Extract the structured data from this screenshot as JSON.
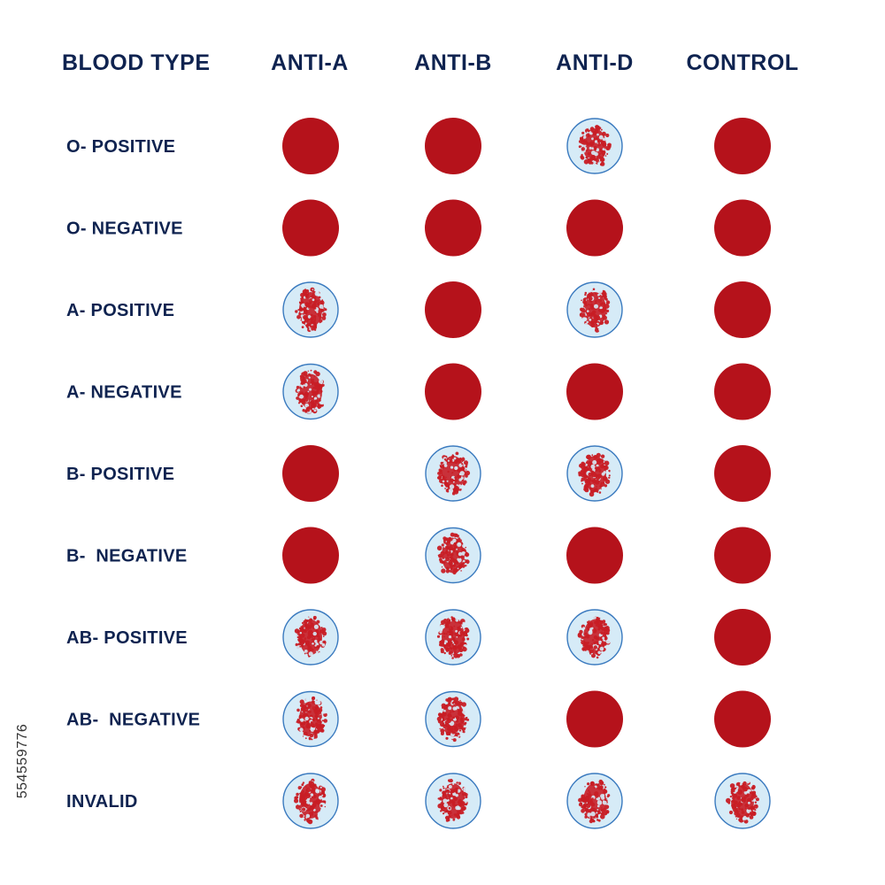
{
  "colors": {
    "heading": "#0f2350",
    "blood_red": "#b5121b",
    "agglutination_red": "#c81d25",
    "well_fill": "#d6ebf7",
    "well_stroke": "#3a7abf"
  },
  "headers": [
    "BLOOD TYPE",
    "ANTI-A",
    "ANTI-B",
    "ANTI-D",
    "CONTROL"
  ],
  "rows": [
    {
      "label": "O- POSITIVE",
      "results": [
        "solid",
        "solid",
        "clumped",
        "solid"
      ]
    },
    {
      "label": "O- NEGATIVE",
      "results": [
        "solid",
        "solid",
        "solid",
        "solid"
      ]
    },
    {
      "label": "A- POSITIVE",
      "results": [
        "clumped",
        "solid",
        "clumped",
        "solid"
      ]
    },
    {
      "label": "A- NEGATIVE",
      "results": [
        "clumped",
        "solid",
        "solid",
        "solid"
      ]
    },
    {
      "label": "B- POSITIVE",
      "results": [
        "solid",
        "clumped",
        "clumped",
        "solid"
      ]
    },
    {
      "label": "B-  NEGATIVE",
      "results": [
        "solid",
        "clumped",
        "solid",
        "solid"
      ]
    },
    {
      "label": "AB- POSITIVE",
      "results": [
        "clumped",
        "clumped",
        "clumped",
        "solid"
      ]
    },
    {
      "label": "AB-  NEGATIVE",
      "results": [
        "clumped",
        "clumped",
        "solid",
        "solid"
      ]
    },
    {
      "label": "INVALID",
      "results": [
        "clumped",
        "clumped",
        "clumped",
        "clumped"
      ]
    }
  ],
  "side_text": "554559776"
}
